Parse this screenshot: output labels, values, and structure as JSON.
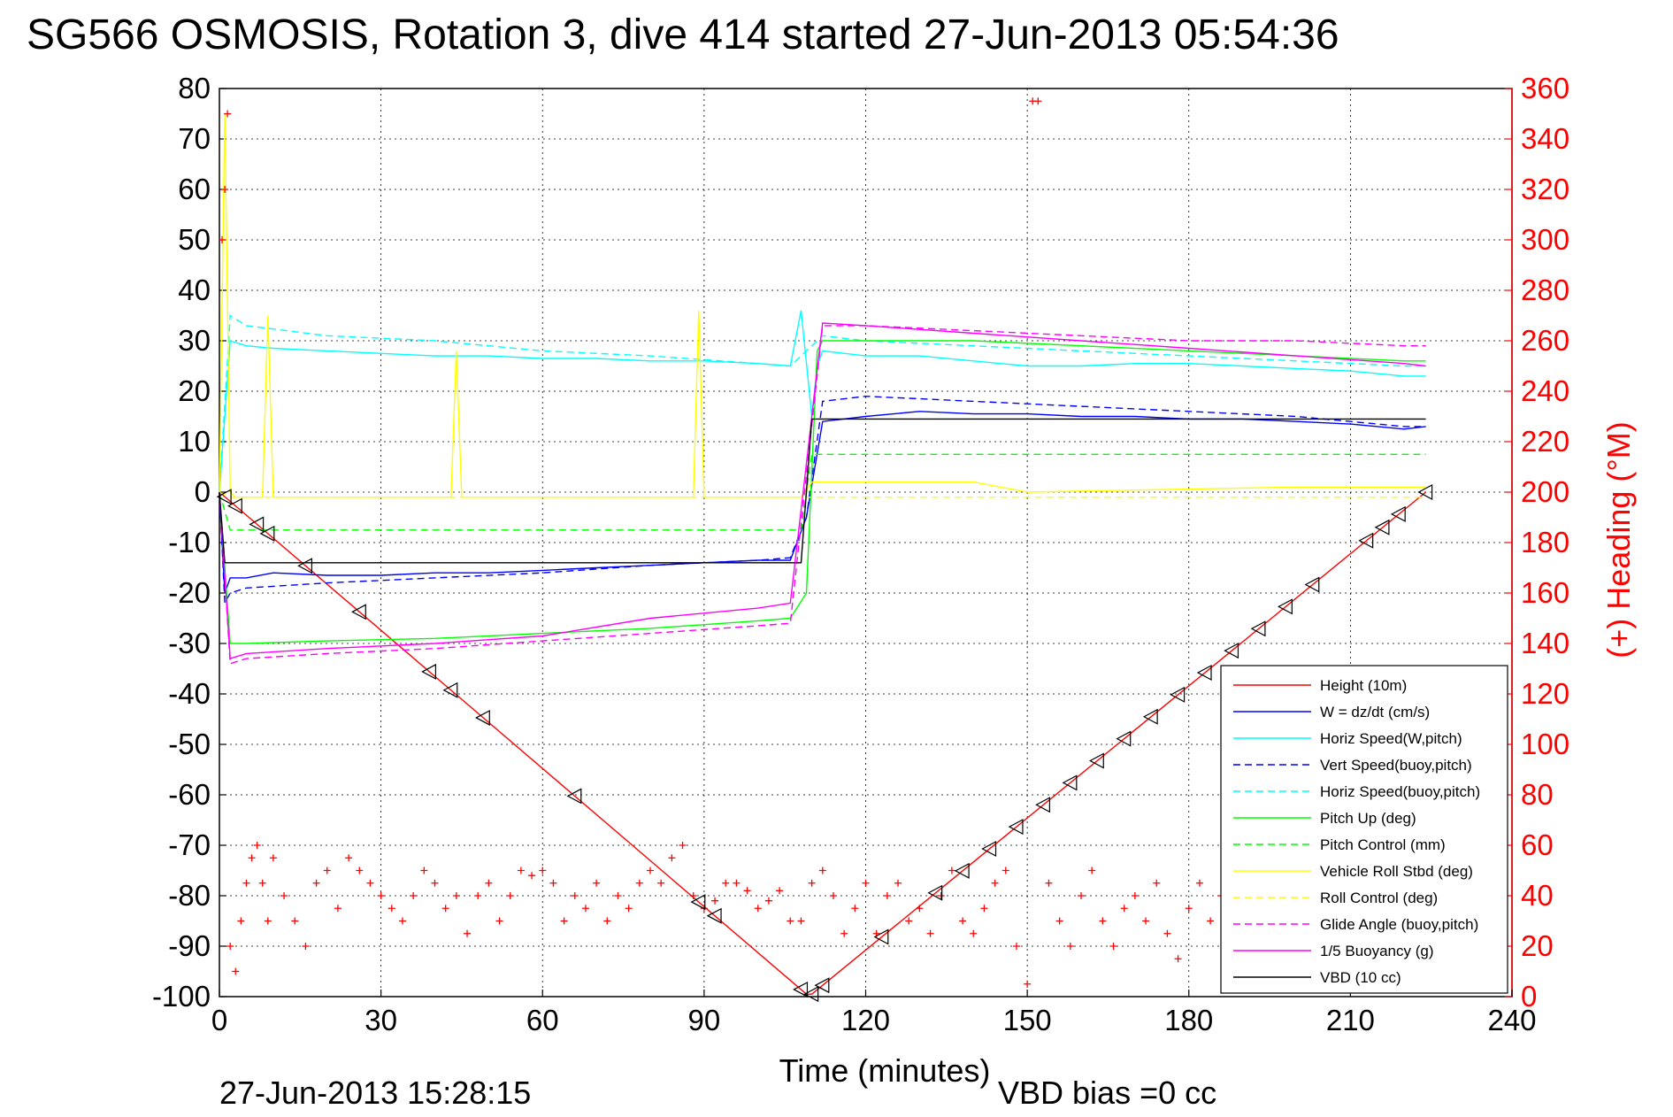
{
  "chart_data": {
    "type": "line",
    "title": "SG566 OSMOSIS, Rotation 3, dive 414 started 27-Jun-2013 05:54:36",
    "xlabel": "Time (minutes)",
    "ylabel": "",
    "y2label": "(+) Heading (°M)",
    "xlim": [
      0,
      240
    ],
    "ylim": [
      -100,
      80
    ],
    "y2lim": [
      0,
      360
    ],
    "xticks": [
      "0",
      "30",
      "60",
      "90",
      "120",
      "150",
      "180",
      "210",
      "240"
    ],
    "yticks": [
      "80",
      "70",
      "60",
      "50",
      "40",
      "30",
      "20",
      "10",
      "0",
      "-10",
      "-20",
      "-30",
      "-40",
      "-50",
      "-60",
      "-70",
      "-80",
      "-90",
      "-100"
    ],
    "y2ticks": [
      "360",
      "340",
      "320",
      "300",
      "280",
      "260",
      "240",
      "220",
      "200",
      "180",
      "160",
      "140",
      "120",
      "100",
      "80",
      "60",
      "40",
      "20",
      "0"
    ],
    "grid": true,
    "legend_position": "bottom-right",
    "footer_left": "27-Jun-2013 15:28:15",
    "footer_right": "VBD bias =0 cc",
    "series": [
      {
        "name": "Height (10m)",
        "color": "#ff0000",
        "style": "solid",
        "x": [
          0,
          109,
          110,
          224
        ],
        "y": [
          0,
          -99.5,
          -99.5,
          0
        ]
      },
      {
        "name": "W = dz/dt (cm/s)",
        "color": "#0000ff",
        "style": "solid",
        "x": [
          0,
          1,
          2,
          5,
          10,
          20,
          30,
          40,
          50,
          60,
          70,
          80,
          90,
          100,
          106,
          109,
          112,
          120,
          130,
          140,
          150,
          160,
          170,
          180,
          190,
          200,
          210,
          220,
          224
        ],
        "y": [
          0,
          -20,
          -17,
          -17,
          -16,
          -16.5,
          -16.5,
          -16,
          -16,
          -15.5,
          -15,
          -14.5,
          -14,
          -13.5,
          -13.5,
          -5,
          14,
          15,
          16,
          15.5,
          15.5,
          15,
          15,
          14.5,
          14.5,
          14,
          13.5,
          12.5,
          13
        ]
      },
      {
        "name": "Horiz Speed(W,pitch)",
        "color": "#00ffff",
        "style": "solid",
        "x": [
          0,
          2,
          5,
          10,
          20,
          30,
          40,
          50,
          60,
          70,
          80,
          90,
          100,
          106,
          108,
          110,
          111,
          112,
          120,
          130,
          140,
          150,
          160,
          170,
          180,
          190,
          200,
          210,
          220,
          224
        ],
        "y": [
          0,
          30,
          29,
          28.5,
          28,
          27.5,
          27,
          27,
          26.5,
          26.5,
          26,
          26,
          25.5,
          25,
          36,
          15,
          25,
          28,
          27,
          27,
          26,
          25,
          25,
          25.5,
          25.5,
          25,
          24.5,
          24,
          23,
          23
        ]
      },
      {
        "name": "Vert Speed(buoy,pitch)",
        "color": "#0000ff",
        "style": "dashed",
        "x": [
          0,
          1,
          2,
          5,
          20,
          40,
          60,
          80,
          100,
          106,
          109,
          112,
          120,
          140,
          160,
          180,
          200,
          220,
          224
        ],
        "y": [
          0,
          -22,
          -20,
          -19,
          -18,
          -17,
          -16,
          -14.5,
          -13.5,
          -13,
          -5,
          18,
          19,
          18,
          17,
          16,
          15,
          13,
          13
        ]
      },
      {
        "name": "Horiz Speed(buoy,pitch)",
        "color": "#00ffff",
        "style": "dashed",
        "x": [
          0,
          2,
          5,
          20,
          40,
          60,
          80,
          100,
          106,
          112,
          120,
          140,
          160,
          180,
          200,
          220,
          224
        ],
        "y": [
          0,
          35,
          33,
          31,
          30,
          28,
          27,
          25.5,
          25,
          31,
          30,
          29,
          28,
          27,
          26,
          25,
          25
        ]
      },
      {
        "name": "Pitch Up (deg)",
        "color": "#00ff00",
        "style": "solid",
        "x": [
          0,
          2,
          5,
          20,
          40,
          60,
          80,
          100,
          106,
          109,
          111,
          112,
          120,
          140,
          160,
          180,
          200,
          220,
          224
        ],
        "y": [
          0,
          -30,
          -30,
          -29.5,
          -29,
          -28,
          -27,
          -25.5,
          -25,
          -20,
          28,
          30,
          30,
          30,
          29,
          28,
          27,
          26,
          26
        ]
      },
      {
        "name": "Pitch Control (mm)",
        "color": "#00ff00",
        "style": "dashed",
        "x": [
          0,
          2,
          3,
          108,
          110,
          112,
          224
        ],
        "y": [
          0,
          -7.5,
          -7.5,
          -7.5,
          7.5,
          7.5,
          7.5
        ]
      },
      {
        "name": "Vehicle Roll Stbd (deg)",
        "color": "#ffff00",
        "style": "solid",
        "x": [
          0,
          1,
          2,
          3,
          8,
          9,
          10,
          30,
          43,
          44,
          45,
          88,
          89,
          90,
          108,
          110,
          112,
          140,
          150,
          200,
          210,
          224
        ],
        "y": [
          0,
          75,
          0,
          -1,
          -1,
          35,
          -1,
          -1,
          -1,
          28,
          -1,
          -1,
          36,
          -1,
          -1,
          2,
          2,
          2,
          0,
          1,
          1,
          1
        ]
      },
      {
        "name": "Roll Control (deg)",
        "color": "#ffff00",
        "style": "dashed",
        "x": [
          0,
          2,
          224
        ],
        "y": [
          0,
          -1,
          -1
        ]
      },
      {
        "name": "Glide Angle (buoy,pitch)",
        "color": "#ff00ff",
        "style": "dashed",
        "x": [
          0,
          2,
          5,
          20,
          40,
          60,
          80,
          100,
          106,
          112,
          120,
          140,
          160,
          180,
          200,
          220,
          224
        ],
        "y": [
          0,
          -34,
          -33,
          -32,
          -31,
          -29.5,
          -28,
          -26.5,
          -26,
          33,
          33,
          32,
          31,
          30,
          30,
          29,
          29
        ]
      },
      {
        "name": "1/5 Buoyancy (g)",
        "color": "#ff00ff",
        "style": "solid",
        "x": [
          0,
          2,
          5,
          20,
          40,
          60,
          80,
          100,
          106,
          112,
          120,
          140,
          160,
          180,
          200,
          220,
          224
        ],
        "y": [
          0,
          -33,
          -32,
          -31,
          -30,
          -28.5,
          -25,
          -23,
          -22,
          33.5,
          33,
          31.5,
          30,
          28.5,
          27,
          25.5,
          25
        ]
      },
      {
        "name": "VBD (10 cc)",
        "color": "#000000",
        "style": "solid",
        "x": [
          0,
          1,
          2,
          108,
          110,
          224
        ],
        "y": [
          0,
          -14,
          -14,
          -14,
          14.5,
          14.5
        ]
      }
    ],
    "heading": {
      "name": "(+) Heading (°M)",
      "color": "#ff0000",
      "marker": "+",
      "axis": "right",
      "x": [
        0.5,
        1,
        1.5,
        2,
        3,
        4,
        5,
        6,
        7,
        8,
        9,
        10,
        12,
        14,
        16,
        18,
        20,
        22,
        24,
        26,
        28,
        30,
        32,
        34,
        36,
        38,
        40,
        42,
        44,
        46,
        48,
        50,
        52,
        54,
        56,
        58,
        60,
        62,
        64,
        66,
        68,
        70,
        72,
        74,
        76,
        78,
        80,
        82,
        84,
        86,
        88,
        90,
        92,
        94,
        96,
        98,
        100,
        102,
        104,
        106,
        108,
        110,
        112,
        114,
        116,
        118,
        120,
        122,
        124,
        126,
        128,
        130,
        132,
        134,
        136,
        138,
        140,
        142,
        144,
        146,
        148,
        150,
        151,
        152,
        154,
        156,
        158,
        160,
        162,
        164,
        166,
        168,
        170,
        172,
        174,
        176,
        178,
        180,
        182,
        184,
        186
      ],
      "y": [
        300,
        320,
        350,
        20,
        10,
        30,
        45,
        55,
        60,
        45,
        30,
        55,
        40,
        30,
        20,
        45,
        50,
        35,
        55,
        50,
        45,
        40,
        35,
        30,
        40,
        50,
        45,
        35,
        40,
        25,
        40,
        45,
        30,
        40,
        50,
        48,
        50,
        45,
        30,
        40,
        35,
        45,
        30,
        40,
        35,
        45,
        50,
        45,
        55,
        60,
        40,
        35,
        38,
        45,
        45,
        42,
        35,
        38,
        42,
        30,
        30,
        45,
        50,
        40,
        25,
        35,
        45,
        25,
        40,
        45,
        30,
        35,
        25,
        40,
        50,
        30,
        25,
        35,
        45,
        50,
        20,
        5,
        355,
        355,
        45,
        30,
        20,
        40,
        50,
        30,
        20,
        35,
        40,
        30,
        45,
        25,
        15,
        35,
        45,
        30,
        40
      ]
    },
    "triangle_marker_times": [
      1,
      3,
      7,
      9,
      16,
      26,
      39,
      43,
      49,
      66,
      89,
      92,
      108,
      110,
      112,
      123,
      133,
      138,
      143,
      148,
      153,
      158,
      163,
      168,
      173,
      178,
      183,
      188,
      193,
      198,
      203,
      213,
      216,
      219,
      224
    ]
  }
}
